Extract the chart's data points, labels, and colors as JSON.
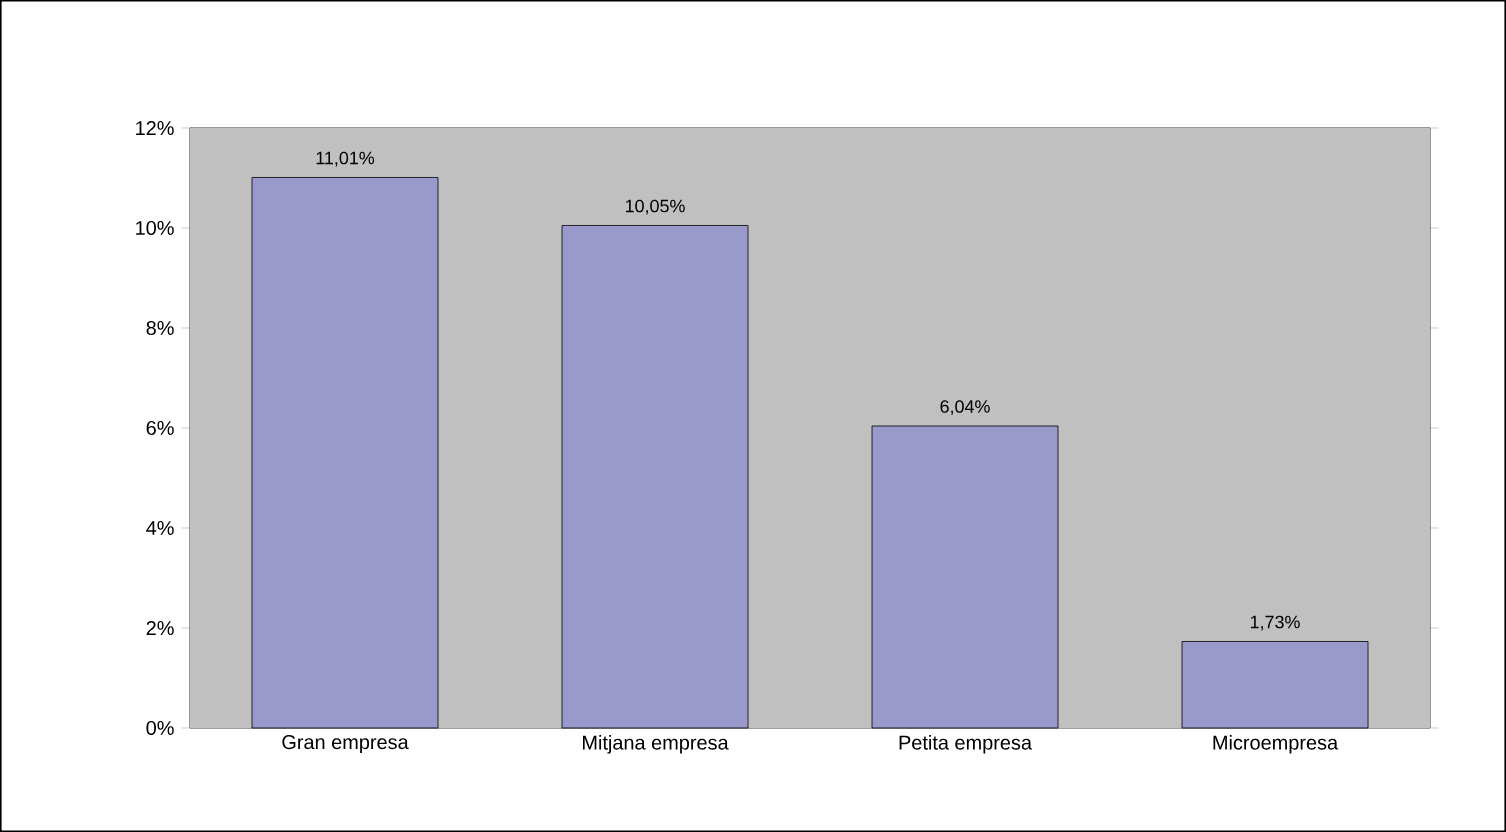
{
  "chart_data": {
    "type": "bar",
    "categories": [
      "Gran empresa",
      "Mitjana empresa",
      "Petita empresa",
      "Microempresa"
    ],
    "values": [
      11.01,
      10.05,
      6.04,
      1.73
    ],
    "color": "#9999cc",
    "value_labels": [
      "11,01%",
      "10,05%",
      "6,04%",
      "1,73%"
    ],
    "ylim": [
      0,
      12
    ],
    "yticks": [
      {
        "value": 0,
        "label": "0%"
      },
      {
        "value": 2,
        "label": "2%"
      },
      {
        "value": 4,
        "label": "4%"
      },
      {
        "value": 6,
        "label": "6%"
      },
      {
        "value": 8,
        "label": "8%"
      },
      {
        "value": 10,
        "label": "10%"
      },
      {
        "value": 12,
        "label": "12%"
      }
    ]
  }
}
